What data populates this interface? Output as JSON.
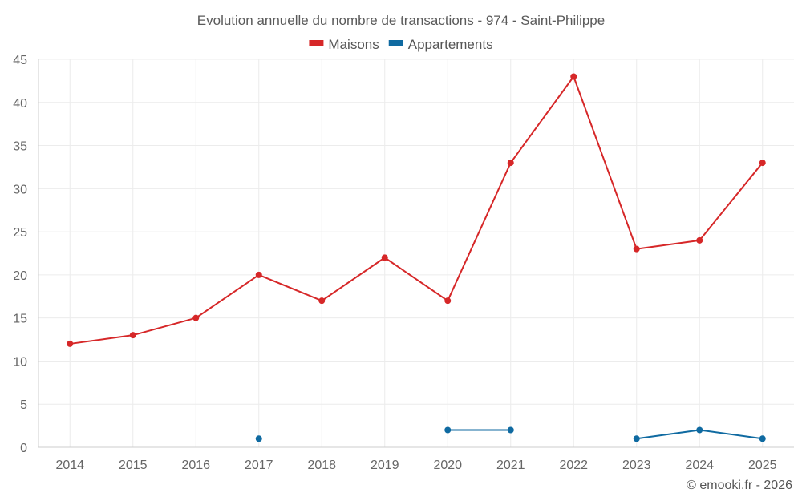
{
  "chart_data": {
    "type": "line",
    "title": "Evolution annuelle du nombre de transactions - 974 - Saint-Philippe",
    "categories": [
      "2014",
      "2015",
      "2016",
      "2017",
      "2018",
      "2019",
      "2020",
      "2021",
      "2022",
      "2023",
      "2024",
      "2025"
    ],
    "series": [
      {
        "name": "Maisons",
        "color": "#d62728",
        "values": [
          12,
          13,
          15,
          20,
          17,
          22,
          17,
          33,
          43,
          23,
          24,
          33
        ]
      },
      {
        "name": "Appartements",
        "color": "#0f6aa1",
        "values": [
          null,
          null,
          null,
          1,
          null,
          null,
          2,
          2,
          null,
          1,
          2,
          1
        ]
      }
    ],
    "ylim": [
      0,
      45
    ],
    "yticks": [
      0,
      5,
      10,
      15,
      20,
      25,
      30,
      35,
      40,
      45
    ],
    "xlabel": "",
    "ylabel": "",
    "grid": true,
    "legend": "top-center"
  },
  "credit": "© emooki.fr - 2026"
}
